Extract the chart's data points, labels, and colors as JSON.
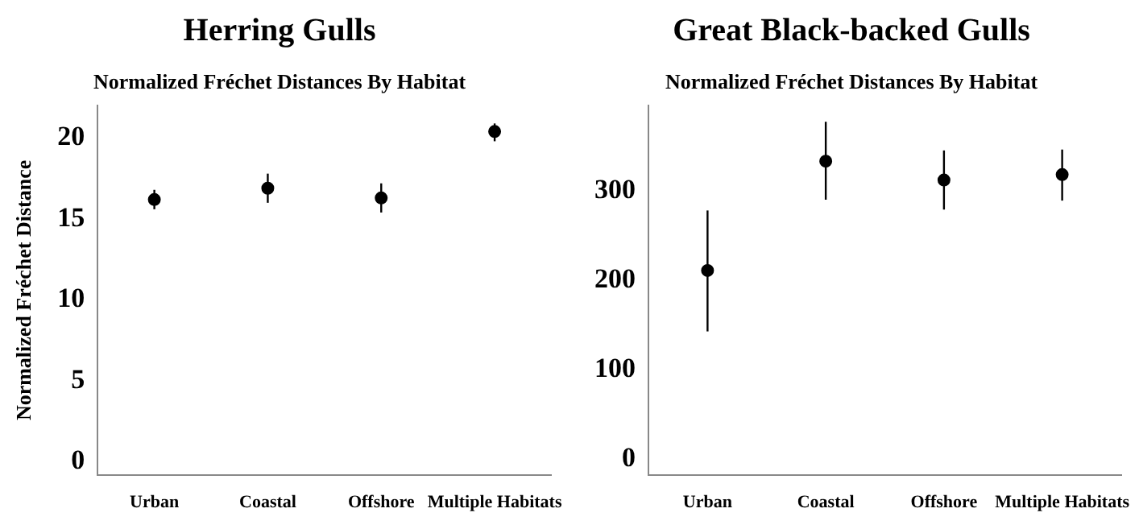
{
  "chart_data": [
    {
      "type": "scatter",
      "title": "Herring Gulls",
      "subtitle": "Normalized Fréchet Distances By Habitat",
      "ylabel": "Normalized Fréchet Distance",
      "categories": [
        "Urban",
        "Coastal",
        "Offshore",
        "Multiple Habitats"
      ],
      "values": [
        16.2,
        16.9,
        16.3,
        20.4
      ],
      "errors": [
        [
          15.6,
          16.8
        ],
        [
          16.0,
          17.8
        ],
        [
          15.4,
          17.2
        ],
        [
          19.8,
          20.9
        ]
      ],
      "color": "#000000",
      "marker": "circle",
      "ylim": [
        -0.8,
        22
      ],
      "yticks": [
        0,
        5,
        10,
        15,
        20
      ],
      "grid": false,
      "legend": false
    },
    {
      "type": "scatter",
      "title": "Great Black-backed Gulls",
      "subtitle": "Normalized Fréchet Distances By Habitat",
      "categories": [
        "Urban",
        "Coastal",
        "Offshore",
        "Multiple Habitats"
      ],
      "values": [
        211,
        333,
        312,
        318
      ],
      "errors": [
        [
          143,
          278
        ],
        [
          290,
          377
        ],
        [
          279,
          345
        ],
        [
          289,
          346
        ]
      ],
      "color": "#000000",
      "marker": "circle",
      "ylim": [
        -17,
        395
      ],
      "yticks": [
        0,
        100,
        200,
        300
      ],
      "grid": false,
      "legend": false
    }
  ]
}
